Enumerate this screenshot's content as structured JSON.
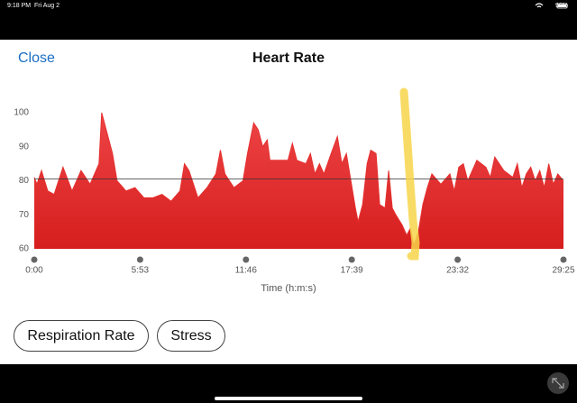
{
  "status_bar": {
    "time": "9:18 PM",
    "date": "Fri Aug 2",
    "battery": "90%"
  },
  "header": {
    "close": "Close",
    "title": "Heart Rate"
  },
  "buttons": [
    "Respiration Rate",
    "Stress"
  ],
  "chart_data": {
    "type": "area",
    "x_label": "Time (h:m:s)",
    "x": [
      0,
      9,
      24,
      45,
      66,
      96,
      126,
      156,
      186,
      216,
      225,
      240,
      261,
      276,
      306,
      336,
      366,
      396,
      426,
      456,
      486,
      501,
      516,
      531,
      546,
      576,
      606,
      621,
      636,
      666,
      696,
      711,
      732,
      747,
      762,
      777,
      786,
      816,
      846,
      861,
      876,
      906,
      921,
      936,
      951,
      966,
      990,
      1011,
      1026,
      1041,
      1056,
      1071,
      1080,
      1095,
      1110,
      1122,
      1140,
      1152,
      1170,
      1182,
      1194,
      1206,
      1227,
      1242,
      1254,
      1266,
      1281,
      1296,
      1311,
      1326,
      1356,
      1386,
      1401,
      1416,
      1431,
      1446,
      1476,
      1506,
      1521,
      1536,
      1566,
      1596,
      1611,
      1626,
      1641,
      1656,
      1671,
      1686,
      1701,
      1716,
      1731,
      1746,
      1765
    ],
    "series": [
      {
        "color": "#e5302f",
        "values": [
          81,
          79,
          83,
          77,
          76,
          84,
          77,
          83,
          79,
          85,
          100,
          95,
          88,
          80,
          77,
          78,
          75,
          75,
          76,
          74,
          77,
          85,
          83,
          79,
          75,
          78,
          82,
          89,
          82,
          78,
          80,
          88,
          97,
          95,
          90,
          92,
          86,
          86,
          86,
          91,
          86,
          85,
          88,
          82,
          85,
          82,
          88,
          93,
          85,
          88,
          80,
          72,
          68,
          73,
          85,
          89,
          88,
          73,
          72,
          83,
          72,
          70,
          67,
          64,
          66,
          61,
          65,
          73,
          78,
          82,
          79,
          82,
          77,
          84,
          85,
          80,
          86,
          84,
          81,
          87,
          83,
          81,
          85,
          78,
          82,
          84,
          80,
          83,
          78,
          85,
          79,
          82,
          80
        ]
      }
    ],
    "reference_line": 80.5,
    "xlim": [
      0,
      1765
    ],
    "xticks": [
      {
        "value": 0,
        "label": "0:00"
      },
      {
        "value": 353,
        "label": "5:53"
      },
      {
        "value": 706,
        "label": "11:46"
      },
      {
        "value": 1059,
        "label": "17:39"
      },
      {
        "value": 1412,
        "label": "23:32"
      },
      {
        "value": 1765,
        "label": "29:25"
      }
    ],
    "ylim": [
      60,
      100
    ],
    "yticks": [
      60,
      70,
      80,
      90,
      100
    ]
  }
}
